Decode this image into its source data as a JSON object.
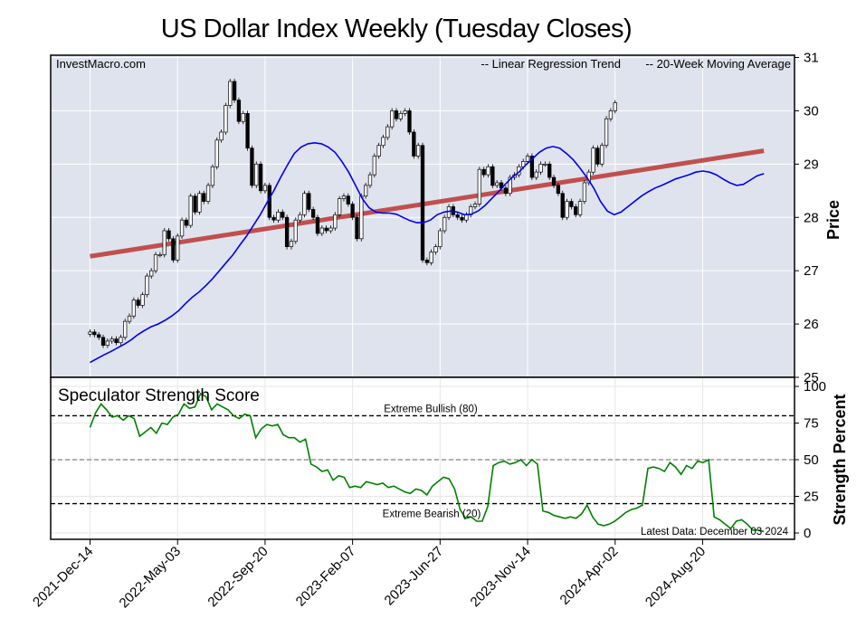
{
  "title": "US Dollar Index Weekly (Tuesday Closes)",
  "watermark": "InvestMacro.com",
  "legend": {
    "regression": "-- Linear Regression Trend",
    "moving_average": "-- 20-Week Moving Average",
    "placement": "top-right"
  },
  "colors": {
    "panel_bg": "#dfe3ee",
    "grid": "#ffffff",
    "regression": "#c0504d",
    "moving_average": "#0000ee",
    "score_line": "#008000",
    "regression_label": "#990000",
    "ma_label": "#0000cc"
  },
  "price_panel": {
    "ylabel": "Price",
    "ylim": [
      25,
      31
    ],
    "yticks": [
      "25",
      "26",
      "27",
      "28",
      "29",
      "30",
      "31"
    ]
  },
  "score_panel": {
    "title": "Speculator Strength Score",
    "ylabel": "Strength Percent",
    "ylim": [
      0,
      100
    ],
    "yticks": [
      "0",
      "25",
      "50",
      "75",
      "100"
    ],
    "bullish_label": "Extreme Bullish (80)",
    "bearish_label": "Extreme Bearish (20)",
    "latest_label": "Latest Data: December 03 2024"
  },
  "x_axis": {
    "ticks": [
      {
        "label": "2021-Dec-14",
        "week": 0
      },
      {
        "label": "2022-May-03",
        "week": 20
      },
      {
        "label": "2022-Sep-20",
        "week": 40
      },
      {
        "label": "2023-Feb-07",
        "week": 60
      },
      {
        "label": "2023-Jun-27",
        "week": 80
      },
      {
        "label": "2023-Nov-14",
        "week": 100
      },
      {
        "label": "2024-Apr-02",
        "week": 120
      },
      {
        "label": "2024-Aug-20",
        "week": 140
      }
    ],
    "xlim": [
      -9,
      161
    ]
  },
  "chart_data": [
    {
      "type": "candlestick",
      "title": "US Dollar Index Weekly (Tuesday Closes)",
      "ylabel": "Price",
      "ylim": [
        25,
        31
      ],
      "closes": [
        25.85,
        25.8,
        25.75,
        25.6,
        25.68,
        25.72,
        25.65,
        25.75,
        26.05,
        26.15,
        26.45,
        26.35,
        26.55,
        26.9,
        27.0,
        27.3,
        27.3,
        27.75,
        27.6,
        27.2,
        27.65,
        27.95,
        27.85,
        28.4,
        28.1,
        28.45,
        28.3,
        28.6,
        28.95,
        29.45,
        29.6,
        30.1,
        30.55,
        30.2,
        29.8,
        29.95,
        29.3,
        28.6,
        29.0,
        28.5,
        28.6,
        28.0,
        27.95,
        28.1,
        28.0,
        27.45,
        27.55,
        27.95,
        28.05,
        28.45,
        28.15,
        28.0,
        27.7,
        27.8,
        27.75,
        27.8,
        28.05,
        28.35,
        28.4,
        28.25,
        28.0,
        27.6,
        28.4,
        28.6,
        28.8,
        29.15,
        29.35,
        29.5,
        29.7,
        30.0,
        29.85,
        29.95,
        30.0,
        29.6,
        29.15,
        29.35,
        27.2,
        27.15,
        27.35,
        27.45,
        27.75,
        28.0,
        28.2,
        28.05,
        28.0,
        27.95,
        28.05,
        28.2,
        28.25,
        28.9,
        28.8,
        28.95,
        28.6,
        28.65,
        28.55,
        28.45,
        28.75,
        28.8,
        28.95,
        29.05,
        29.15,
        28.75,
        28.85,
        29.0,
        29.0,
        28.75,
        28.6,
        28.45,
        28.0,
        28.3,
        28.2,
        28.05,
        28.3,
        28.65,
        28.85,
        29.3,
        29.0,
        29.35,
        29.85,
        30.0,
        30.15
      ]
    },
    {
      "type": "line",
      "name": "20-Week Moving Average",
      "closes": [
        25.28,
        25.35,
        25.42,
        25.48,
        25.55,
        25.62,
        25.7,
        25.8,
        25.88,
        25.95,
        26.0,
        26.07,
        26.15,
        26.25,
        26.38,
        26.5,
        26.6,
        26.72,
        26.85,
        27.0,
        27.15,
        27.3,
        27.48,
        27.65,
        27.85,
        28.05,
        28.28,
        28.5,
        28.75,
        28.98,
        29.2,
        29.32,
        29.38,
        29.4,
        29.38,
        29.32,
        29.22,
        29.05,
        28.85,
        28.6,
        28.35,
        28.18,
        28.1,
        28.08,
        28.08,
        28.06,
        28.0,
        27.94,
        27.9,
        27.9,
        27.95,
        28.05,
        28.1,
        28.12,
        28.1,
        28.05,
        28.06,
        28.12,
        28.22,
        28.35,
        28.48,
        28.62,
        28.75,
        28.85,
        28.98,
        29.1,
        29.22,
        29.3,
        29.33,
        29.3,
        29.2,
        29.08,
        28.92,
        28.75,
        28.55,
        28.3,
        28.12,
        28.05,
        28.1,
        28.2,
        28.3,
        28.4,
        28.48,
        28.55,
        28.6,
        28.66,
        28.72,
        28.76,
        28.8,
        28.85,
        28.87,
        28.85,
        28.8,
        28.72,
        28.65,
        28.6,
        28.62,
        28.7,
        28.78,
        28.82
      ]
    },
    {
      "type": "line",
      "name": "Linear Regression Trend",
      "points": [
        {
          "week": 0,
          "price": 27.27
        },
        {
          "week": 154,
          "price": 29.25
        }
      ]
    },
    {
      "type": "line",
      "title": "Speculator Strength Score",
      "ylabel": "Strength Percent",
      "ylim": [
        0,
        100
      ],
      "reference_lines": [
        {
          "name": "Extreme Bullish (80)",
          "value": 80
        },
        {
          "name": "Extreme Bearish (20)",
          "value": 20
        },
        {
          "value": 50
        }
      ],
      "values": [
        72,
        82,
        88,
        84,
        79,
        80,
        77,
        80,
        78,
        66,
        69,
        72,
        68,
        75,
        74,
        79,
        81,
        88,
        85,
        86,
        95,
        93,
        84,
        88,
        86,
        84,
        80,
        78,
        81,
        80,
        65,
        71,
        74,
        73,
        74,
        67,
        65,
        65,
        62,
        64,
        47,
        45,
        42,
        43,
        36,
        39,
        38,
        31,
        32,
        31,
        35,
        34,
        33,
        34,
        31,
        32,
        30,
        28,
        27,
        30,
        29,
        26,
        32,
        35,
        38,
        37,
        30,
        16,
        10,
        11,
        8,
        8,
        18,
        46,
        48,
        49,
        47,
        48,
        50,
        46,
        50,
        47,
        15,
        14,
        12,
        11,
        10,
        11,
        10,
        13,
        19,
        11,
        6,
        5,
        6,
        8,
        11,
        14,
        16,
        17,
        19,
        44,
        45,
        44,
        42,
        48,
        45,
        40,
        46,
        44,
        49,
        48,
        50,
        11,
        9,
        6,
        3,
        8,
        9,
        6,
        2,
        2,
        1
      ]
    }
  ]
}
